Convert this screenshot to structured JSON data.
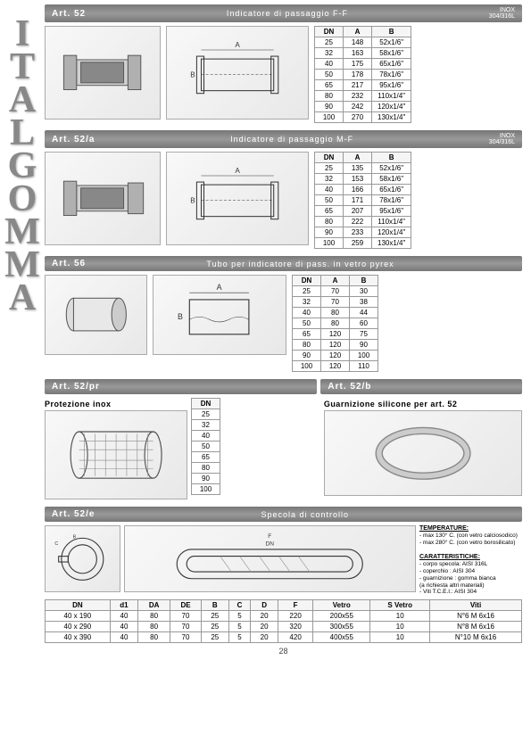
{
  "brand_letters": [
    "I",
    "T",
    "A",
    "L",
    "G",
    "O",
    "M",
    "M",
    "A"
  ],
  "page_number": "28",
  "art52": {
    "art": "Art. 52",
    "desc": "Indicatore di passaggio F-F",
    "mat1": "INOX",
    "mat2": "304/316L",
    "cols": [
      "DN",
      "A",
      "B"
    ],
    "rows": [
      [
        "25",
        "148",
        "52x1/6\""
      ],
      [
        "32",
        "163",
        "58x1/6\""
      ],
      [
        "40",
        "175",
        "65x1/6\""
      ],
      [
        "50",
        "178",
        "78x1/6\""
      ],
      [
        "65",
        "217",
        "95x1/6\""
      ],
      [
        "80",
        "232",
        "110x1/4\""
      ],
      [
        "90",
        "242",
        "120x1/4\""
      ],
      [
        "100",
        "270",
        "130x1/4\""
      ]
    ]
  },
  "art52a": {
    "art": "Art. 52/a",
    "desc": "Indicatore di passaggio M-F",
    "mat1": "INOX",
    "mat2": "304/316L",
    "cols": [
      "DN",
      "A",
      "B"
    ],
    "rows": [
      [
        "25",
        "135",
        "52x1/6\""
      ],
      [
        "32",
        "153",
        "58x1/6\""
      ],
      [
        "40",
        "166",
        "65x1/6\""
      ],
      [
        "50",
        "171",
        "78x1/6\""
      ],
      [
        "65",
        "207",
        "95x1/6\""
      ],
      [
        "80",
        "222",
        "110x1/4\""
      ],
      [
        "90",
        "233",
        "120x1/4\""
      ],
      [
        "100",
        "259",
        "130x1/4\""
      ]
    ]
  },
  "art56": {
    "art": "Art. 56",
    "desc": "Tubo per indicatore di pass. in vetro pyrex",
    "cols": [
      "DN",
      "A",
      "B"
    ],
    "rows": [
      [
        "25",
        "70",
        "30"
      ],
      [
        "32",
        "70",
        "38"
      ],
      [
        "40",
        "80",
        "44"
      ],
      [
        "50",
        "80",
        "60"
      ],
      [
        "65",
        "120",
        "75"
      ],
      [
        "80",
        "120",
        "90"
      ],
      [
        "90",
        "120",
        "100"
      ],
      [
        "100",
        "120",
        "110"
      ]
    ]
  },
  "art52pr": {
    "art_left": "Art. 52/pr",
    "art_right": "Art. 52/b",
    "title_left": "Protezione inox",
    "title_right": "Guarnizione silicone per art. 52",
    "col": "DN",
    "rows": [
      "25",
      "32",
      "40",
      "50",
      "65",
      "80",
      "90",
      "100"
    ]
  },
  "art52e": {
    "art": "Art. 52/e",
    "desc": "Specola di controllo",
    "temp_title": "TEMPERATURE:",
    "temp1": "- max 130° C. (con vetro calciosodico)",
    "temp2": "- max 280° C. (con vetro borosilicato)",
    "car_title": "CARATTERISTICHE:",
    "car1": "- corpo specola: AISI 316L",
    "car2": "- coperchio    : AISI 304",
    "car3": "- guarnizione  : gomma bianca",
    "car3b": "                 (a richiesta altri materiali)",
    "car4": "- Viti T.C.E.I.: AISI 304",
    "cols": [
      "DN",
      "d1",
      "DA",
      "DE",
      "B",
      "C",
      "D",
      "F",
      "Vetro",
      "S Vetro",
      "Viti"
    ],
    "rows": [
      [
        "40 x 190",
        "40",
        "80",
        "70",
        "25",
        "5",
        "20",
        "220",
        "200x55",
        "10",
        "N°6 M 6x16"
      ],
      [
        "40 x 290",
        "40",
        "80",
        "70",
        "25",
        "5",
        "20",
        "320",
        "300x55",
        "10",
        "N°8 M 6x16"
      ],
      [
        "40 x 390",
        "40",
        "80",
        "70",
        "25",
        "5",
        "20",
        "420",
        "400x55",
        "10",
        "N°10 M 6x16"
      ]
    ]
  },
  "colors": {
    "header_bg": "#888888",
    "header_text": "#ffffff",
    "border": "#999999",
    "letter_color": "#888888"
  }
}
